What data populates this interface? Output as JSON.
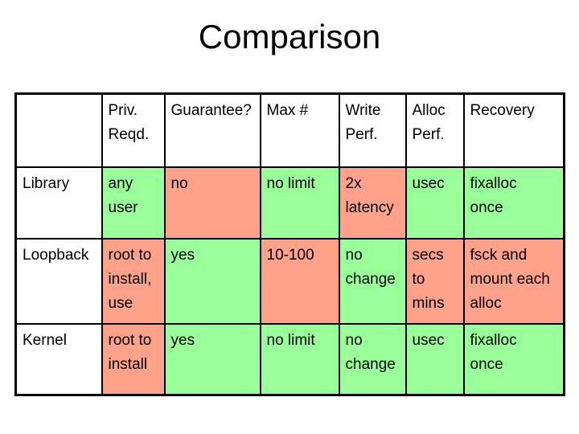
{
  "slide": {
    "title": "Comparison"
  },
  "colors": {
    "good": "#99FF99",
    "bad": "#FFA28C",
    "plain": "#FFFFFF",
    "border": "#000000",
    "background": "#FFFFFF",
    "text": "#000000"
  },
  "table": {
    "columns": [
      "",
      "Priv.\nReqd.",
      "Guarantee?",
      "Max #",
      "Write\nPerf.",
      "Alloc\nPerf.",
      "Recovery"
    ],
    "rows": [
      {
        "label": "Library",
        "cells": [
          {
            "text": "any\nuser",
            "tone": "good"
          },
          {
            "text": "no",
            "tone": "bad"
          },
          {
            "text": "no limit",
            "tone": "good"
          },
          {
            "text": "2x\nlatency",
            "tone": "bad"
          },
          {
            "text": "usec",
            "tone": "good"
          },
          {
            "text": "fixalloc\nonce",
            "tone": "good"
          }
        ]
      },
      {
        "label": "Loopback",
        "cells": [
          {
            "text": "root to\ninstall,\nuse",
            "tone": "bad"
          },
          {
            "text": "yes",
            "tone": "good"
          },
          {
            "text": "10-100",
            "tone": "bad"
          },
          {
            "text": "no\nchange",
            "tone": "good"
          },
          {
            "text": "secs\nto\nmins",
            "tone": "bad"
          },
          {
            "text": "fsck and\nmount each\nalloc",
            "tone": "bad"
          }
        ]
      },
      {
        "label": "Kernel",
        "cells": [
          {
            "text": "root to\ninstall",
            "tone": "bad"
          },
          {
            "text": "yes",
            "tone": "good"
          },
          {
            "text": "no limit",
            "tone": "good"
          },
          {
            "text": "no\nchange",
            "tone": "good"
          },
          {
            "text": "usec",
            "tone": "good"
          },
          {
            "text": "fixalloc\nonce",
            "tone": "good"
          }
        ]
      }
    ]
  }
}
